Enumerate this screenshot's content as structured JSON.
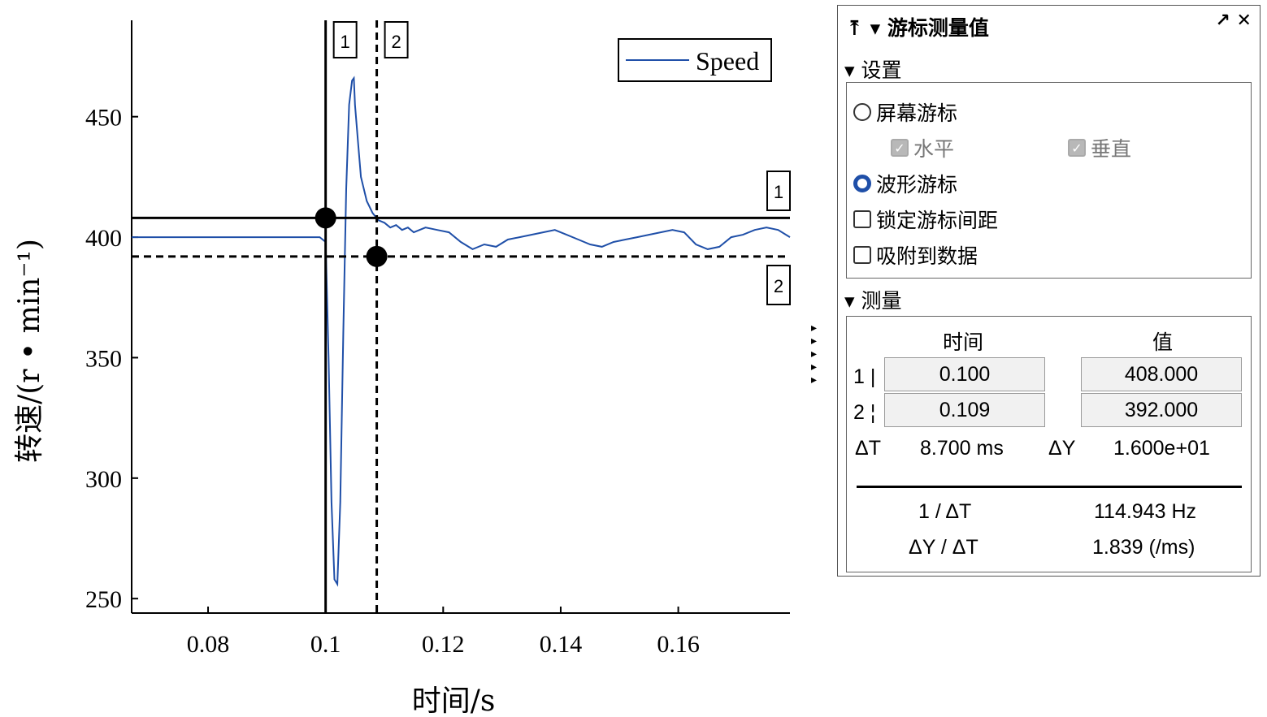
{
  "chart_data": {
    "type": "line",
    "xlabel": "时间/s",
    "ylabel": "转速/(r • min⁻¹)",
    "xlim": [
      0.067,
      0.179
    ],
    "ylim": [
      244,
      490
    ],
    "xticks": [
      0.08,
      0.1,
      0.12,
      0.14,
      0.16
    ],
    "xtick_labels": [
      "0.08",
      "0.1",
      "0.12",
      "0.14",
      "0.16"
    ],
    "yticks": [
      250,
      300,
      350,
      400,
      450
    ],
    "ytick_labels": [
      "250",
      "300",
      "350",
      "400",
      "450"
    ],
    "legend": "top-right",
    "series": [
      {
        "name": "Speed",
        "color": "#1f4fa8",
        "x": [
          0.067,
          0.075,
          0.085,
          0.095,
          0.099,
          0.1,
          0.1005,
          0.101,
          0.1015,
          0.102,
          0.1025,
          0.103,
          0.1035,
          0.104,
          0.1045,
          0.1048,
          0.105,
          0.1055,
          0.106,
          0.107,
          0.108,
          0.109,
          0.11,
          0.111,
          0.112,
          0.113,
          0.114,
          0.115,
          0.117,
          0.119,
          0.121,
          0.123,
          0.125,
          0.127,
          0.129,
          0.131,
          0.133,
          0.135,
          0.137,
          0.139,
          0.141,
          0.143,
          0.145,
          0.147,
          0.149,
          0.151,
          0.153,
          0.155,
          0.157,
          0.159,
          0.161,
          0.163,
          0.165,
          0.167,
          0.169,
          0.171,
          0.173,
          0.175,
          0.177,
          0.179
        ],
        "y": [
          400,
          400,
          400,
          400,
          400,
          398,
          350,
          290,
          258,
          256,
          290,
          360,
          420,
          455,
          465,
          466,
          455,
          440,
          425,
          415,
          410,
          407,
          406,
          404,
          405,
          403,
          404,
          402,
          404,
          403,
          402,
          398,
          395,
          397,
          396,
          399,
          400,
          401,
          402,
          403,
          401,
          399,
          397,
          396,
          398,
          399,
          400,
          401,
          402,
          403,
          402,
          397,
          395,
          396,
          400,
          401,
          403,
          404,
          403,
          400
        ]
      }
    ],
    "cursors": {
      "vertical": [
        {
          "label": "1",
          "x": 0.1,
          "style": "solid"
        },
        {
          "label": "2",
          "x": 0.1087,
          "style": "dashed"
        }
      ],
      "horizontal": [
        {
          "label": "1",
          "y": 408,
          "style": "solid"
        },
        {
          "label": "2",
          "y": 392,
          "style": "dashed"
        }
      ],
      "markers": [
        {
          "x": 0.1,
          "y": 408
        },
        {
          "x": 0.1087,
          "y": 392
        }
      ]
    }
  },
  "panel": {
    "title": "游标测量值",
    "title_left_icons": "⤒ ▾",
    "title_right_icons": "↗ ✕",
    "settings_label": "▾ 设置",
    "screen_cursor": "屏幕游标",
    "horizontal": "水平",
    "vertical": "垂直",
    "waveform_cursor": "波形游标",
    "lock_spacing": "锁定游标间距",
    "snap_to_data": "吸附到数据",
    "measure_label": "▾ 测量",
    "col_time": "时间",
    "col_value": "值",
    "row1_label": "1 |",
    "row2_label": "2 ¦",
    "t1": "0.100",
    "t2": "0.109",
    "v1": "408.000",
    "v2": "392.000",
    "dt_label": "ΔT",
    "dt_value": "8.700 ms",
    "dy_label": "ΔY",
    "dy_value": "1.600e+01",
    "inv_dt_label": "1 / ΔT",
    "inv_dt_value": "114.943 Hz",
    "dydt_label": "ΔY / ΔT",
    "dydt_value": "1.839 (/ms)"
  }
}
